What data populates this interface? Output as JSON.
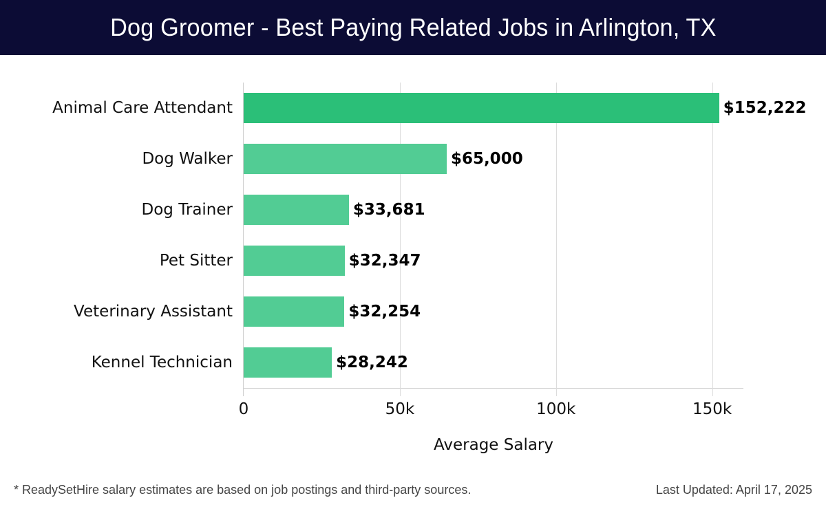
{
  "header": {
    "title": "Dog Groomer - Best Paying Related Jobs in Arlington, TX"
  },
  "footer": {
    "note": "* ReadySetHire salary estimates are based on job postings and third-party sources.",
    "updated": "Last Updated: April 17, 2025"
  },
  "colors": {
    "header_bg": "#0c0c35",
    "bar_top": "#2bbf78",
    "bar": "#52cc94"
  },
  "chart_data": {
    "type": "bar",
    "orientation": "horizontal",
    "title": "Dog Groomer - Best Paying Related Jobs in Arlington, TX",
    "xlabel": "Average Salary",
    "ylabel": "",
    "categories": [
      "Animal Care Attendant",
      "Dog Walker",
      "Dog Trainer",
      "Pet Sitter",
      "Veterinary Assistant",
      "Kennel Technician"
    ],
    "values": [
      152222,
      65000,
      33681,
      32347,
      32254,
      28242
    ],
    "value_labels": [
      "$152,222",
      "$65,000",
      "$33,681",
      "$32,347",
      "$32,254",
      "$28,242"
    ],
    "xlim": [
      0,
      160000
    ],
    "x_ticks": [
      0,
      50000,
      100000,
      150000
    ],
    "x_tick_labels": [
      "0",
      "50k",
      "100k",
      "150k"
    ],
    "grid": true,
    "legend": null
  }
}
